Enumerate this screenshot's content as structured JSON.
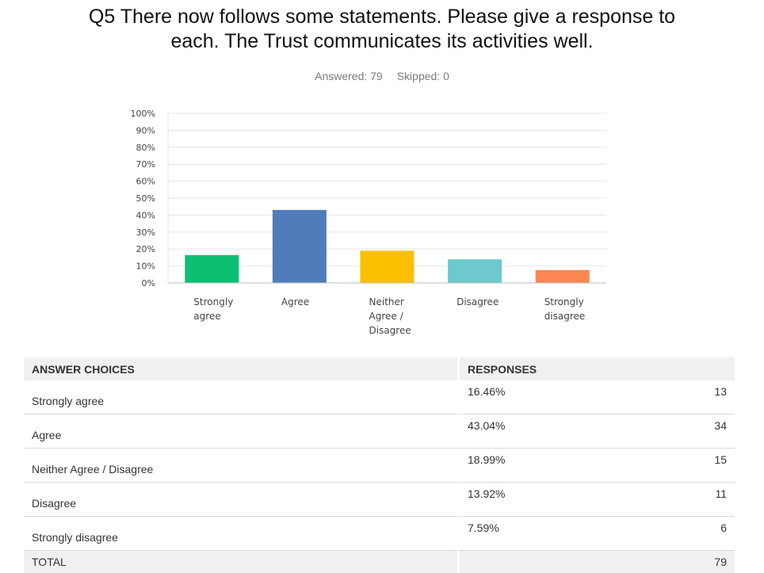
{
  "title_lines": [
    "Q5 There now follows some statements.  Please give a response to",
    "each.  The Trust communicates its activities well."
  ],
  "stats": {
    "answered": "Answered: 79",
    "skipped": "Skipped: 0"
  },
  "chart_data": {
    "type": "bar",
    "categories": [
      "Strongly agree",
      "Agree",
      "Neither Agree / Disagree",
      "Disagree",
      "Strongly disagree"
    ],
    "category_label_lines": [
      [
        "Strongly",
        "agree"
      ],
      [
        "Agree"
      ],
      [
        "Neither",
        "Agree /",
        "Disagree"
      ],
      [
        "Disagree"
      ],
      [
        "Strongly",
        "disagree"
      ]
    ],
    "values": [
      16.46,
      43.04,
      18.99,
      13.92,
      7.59
    ],
    "colors": [
      "#0cbf73",
      "#4e7db9",
      "#f9bf00",
      "#6dc8cf",
      "#fb8753"
    ],
    "ylim": [
      0,
      100
    ],
    "yticks": [
      "0%",
      "10%",
      "20%",
      "30%",
      "40%",
      "50%",
      "60%",
      "70%",
      "80%",
      "90%",
      "100%"
    ],
    "grid": true
  },
  "table": {
    "headers": {
      "choice": "ANSWER CHOICES",
      "responses": "RESPONSES"
    },
    "rows": [
      {
        "choice": "Strongly agree",
        "pct": "16.46%",
        "count": "13"
      },
      {
        "choice": "Agree",
        "pct": "43.04%",
        "count": "34"
      },
      {
        "choice": "Neither Agree / Disagree",
        "pct": "18.99%",
        "count": "15"
      },
      {
        "choice": "Disagree",
        "pct": "13.92%",
        "count": "11"
      },
      {
        "choice": "Strongly disagree",
        "pct": "7.59%",
        "count": "6"
      }
    ],
    "total": {
      "label": "TOTAL",
      "count": "79"
    }
  }
}
